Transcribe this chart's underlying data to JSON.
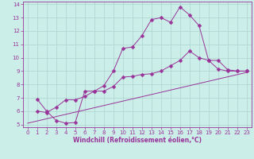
{
  "xlabel": "Windchill (Refroidissement éolien,°C)",
  "bg_color": "#cceee8",
  "grid_color": "#aad4ce",
  "line_color": "#993399",
  "xlim": [
    -0.5,
    23.5
  ],
  "ylim": [
    4.8,
    14.2
  ],
  "yticks": [
    5,
    6,
    7,
    8,
    9,
    10,
    11,
    12,
    13,
    14
  ],
  "xticks": [
    0,
    1,
    2,
    3,
    4,
    5,
    6,
    7,
    8,
    9,
    10,
    11,
    12,
    13,
    14,
    15,
    16,
    17,
    18,
    19,
    20,
    21,
    22,
    23
  ],
  "line1_x": [
    1,
    2,
    3,
    4,
    5,
    6,
    7,
    8,
    9,
    10,
    11,
    12,
    13,
    14,
    15,
    16,
    17,
    18,
    19,
    20,
    21,
    22,
    23
  ],
  "line1_y": [
    6.9,
    6.0,
    5.3,
    5.1,
    5.15,
    7.5,
    7.5,
    7.9,
    9.0,
    10.7,
    10.8,
    11.65,
    12.85,
    13.0,
    12.65,
    13.8,
    13.2,
    12.4,
    9.8,
    9.15,
    9.0,
    9.0,
    9.0
  ],
  "line2_x": [
    0,
    23
  ],
  "line2_y": [
    5.1,
    8.9
  ],
  "line3_x": [
    1,
    2,
    3,
    4,
    5,
    6,
    7,
    8,
    9,
    10,
    11,
    12,
    13,
    14,
    15,
    16,
    17,
    18,
    19,
    20,
    21,
    22,
    23
  ],
  "line3_y": [
    6.0,
    5.9,
    6.3,
    6.85,
    6.85,
    7.1,
    7.5,
    7.5,
    7.85,
    8.55,
    8.6,
    8.75,
    8.8,
    9.0,
    9.4,
    9.8,
    10.5,
    10.0,
    9.8,
    9.8,
    9.1,
    9.0,
    9.0
  ],
  "tick_fontsize": 5,
  "xlabel_fontsize": 5.5
}
